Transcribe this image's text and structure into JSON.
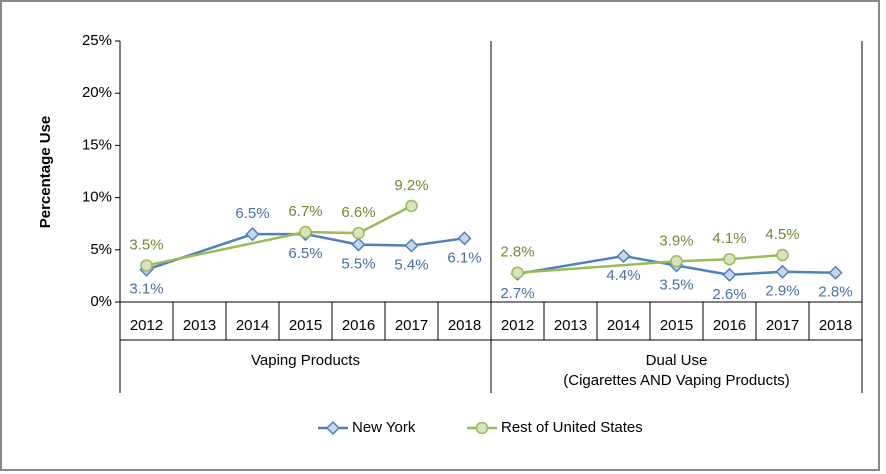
{
  "chart_data": {
    "type": "line",
    "ylabel": "Percentage Use",
    "ylim": [
      0,
      25
    ],
    "yticks": [
      {
        "value": 0,
        "label": "0%"
      },
      {
        "value": 5,
        "label": "5%"
      },
      {
        "value": 10,
        "label": "10%"
      },
      {
        "value": 15,
        "label": "15%"
      },
      {
        "value": 20,
        "label": "20%"
      },
      {
        "value": 25,
        "label": "25%"
      }
    ],
    "xlim": [
      2011.5,
      2018.5
    ],
    "legend": [
      {
        "name": "New York",
        "color": "#4f81bd"
      },
      {
        "name": "Rest of United States",
        "color": "#9bbb59"
      }
    ],
    "panels": [
      {
        "label": [
          "Vaping Products"
        ],
        "xticks": [
          2012,
          2013,
          2014,
          2015,
          2016,
          2017,
          2018
        ],
        "series": [
          {
            "x": [
              2012,
              2014,
              2015,
              2016,
              2017,
              2018
            ],
            "values": [
              3.1,
              6.5,
              6.5,
              5.5,
              5.4,
              6.1
            ],
            "value_labels": [
              "3.1%",
              "6.5%",
              "6.5%",
              "5.5%",
              "5.4%",
              "6.1%"
            ]
          },
          {
            "x": [
              2012,
              2015,
              2016,
              2017
            ],
            "values": [
              3.5,
              6.7,
              6.6,
              9.2
            ],
            "value_labels": [
              "3.5%",
              "6.7%",
              "6.6%",
              "9.2%"
            ]
          }
        ]
      },
      {
        "label": [
          "Dual Use",
          "(Cigarettes AND Vaping Products)"
        ],
        "xticks": [
          2012,
          2013,
          2014,
          2015,
          2016,
          2017,
          2018
        ],
        "series": [
          {
            "x": [
              2012,
              2014,
              2015,
              2016,
              2017,
              2018
            ],
            "values": [
              2.7,
              4.4,
              3.5,
              2.6,
              2.9,
              2.8
            ],
            "value_labels": [
              "2.7%",
              "4.4%",
              "3.5%",
              "2.6%",
              "2.9%",
              "2.8%"
            ]
          },
          {
            "x": [
              2012,
              2015,
              2016,
              2017
            ],
            "values": [
              2.8,
              3.9,
              4.1,
              4.5
            ],
            "value_labels": [
              "2.8%",
              "3.9%",
              "4.1%",
              "4.5%"
            ]
          }
        ]
      }
    ]
  }
}
